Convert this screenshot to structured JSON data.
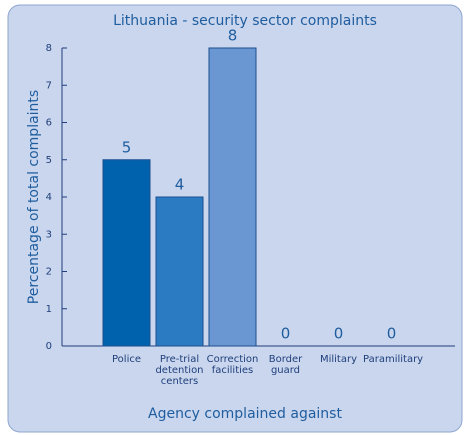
{
  "chart_data": {
    "type": "bar",
    "title": "Lithuania - security sector complaints",
    "y_label": "Percentage of total complaints",
    "x_label": "Agency complained against",
    "categories": [
      "Police",
      "Pre-trial detention centers",
      "Correction facilities",
      "Border guard",
      "Military",
      "Paramilitary"
    ],
    "values": [
      5,
      4,
      8,
      0,
      0,
      0
    ],
    "colors": [
      "#0062ad",
      "#2b7bc3",
      "#6a97d2",
      "#1c5ea6",
      "#1c5ea6",
      "#1c5ea6"
    ],
    "ylim": [
      0,
      8
    ],
    "yticks": [
      0,
      1,
      2,
      3,
      4,
      5,
      6,
      7,
      8
    ],
    "grid": false
  }
}
